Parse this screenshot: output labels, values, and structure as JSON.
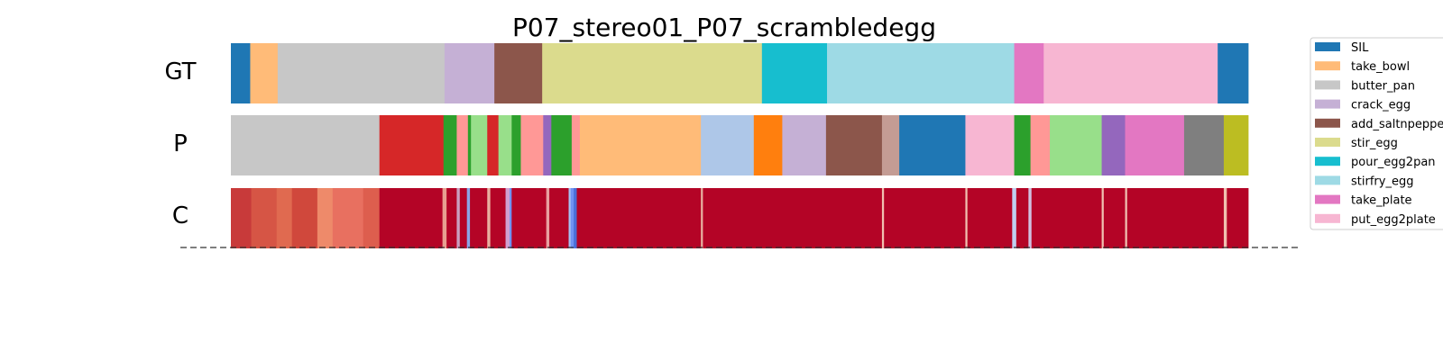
{
  "chart_data": {
    "type": "segmentation-timeline",
    "title": "P07_stereo01_P07_scrambledegg",
    "row_labels": [
      "GT",
      "P",
      "C"
    ],
    "legend_placement": "top-right",
    "x_range": [
      0,
      1000
    ],
    "legend": [
      {
        "label": "SIL",
        "color": "#1f77b4"
      },
      {
        "label": "take_bowl",
        "color": "#ffbb78"
      },
      {
        "label": "butter_pan",
        "color": "#c7c7c7"
      },
      {
        "label": "crack_egg",
        "color": "#c5b0d5"
      },
      {
        "label": "add_saltnpepper",
        "color": "#8c564b"
      },
      {
        "label": "stir_egg",
        "color": "#dbdb8d"
      },
      {
        "label": "pour_egg2pan",
        "color": "#17becf"
      },
      {
        "label": "stirfry_egg",
        "color": "#9edae5"
      },
      {
        "label": "take_plate",
        "color": "#e377c2"
      },
      {
        "label": "put_egg2plate",
        "color": "#f7b6d2"
      }
    ],
    "extra_colors": {
      "red": "#d62728",
      "green": "#2ca02c",
      "lightgreen": "#98df8a",
      "salmon": "#ff9896",
      "purple": "#9467bd",
      "lightblue": "#aec7e8",
      "orange": "#ff7f0e",
      "rosybrown": "#c49c94",
      "gray": "#7f7f7f",
      "olive": "#bcbd22"
    },
    "series": [
      {
        "segments": [
          {
            "start": 0,
            "end": 19,
            "color": "#1f77b4"
          },
          {
            "start": 19,
            "end": 46,
            "color": "#ffbb78"
          },
          {
            "start": 46,
            "end": 210,
            "color": "#c7c7c7"
          },
          {
            "start": 210,
            "end": 259,
            "color": "#c5b0d5"
          },
          {
            "start": 259,
            "end": 306,
            "color": "#8c564b"
          },
          {
            "start": 306,
            "end": 522,
            "color": "#dbdb8d"
          },
          {
            "start": 522,
            "end": 586,
            "color": "#17becf"
          },
          {
            "start": 586,
            "end": 770,
            "color": "#9edae5"
          },
          {
            "start": 770,
            "end": 799,
            "color": "#e377c2"
          },
          {
            "start": 799,
            "end": 970,
            "color": "#f7b6d2"
          },
          {
            "start": 970,
            "end": 1000,
            "color": "#1f77b4"
          }
        ]
      },
      {
        "segments": [
          {
            "start": 0,
            "end": 146,
            "color": "#c7c7c7"
          },
          {
            "start": 146,
            "end": 209,
            "color": "#d62728"
          },
          {
            "start": 209,
            "end": 222,
            "color": "#2ca02c"
          },
          {
            "start": 222,
            "end": 233,
            "color": "#ff9896"
          },
          {
            "start": 233,
            "end": 236,
            "color": "#2ca02c"
          },
          {
            "start": 236,
            "end": 252,
            "color": "#98df8a"
          },
          {
            "start": 252,
            "end": 263,
            "color": "#d62728"
          },
          {
            "start": 263,
            "end": 276,
            "color": "#98df8a"
          },
          {
            "start": 276,
            "end": 285,
            "color": "#2ca02c"
          },
          {
            "start": 285,
            "end": 307,
            "color": "#ff9896"
          },
          {
            "start": 307,
            "end": 315,
            "color": "#9467bd"
          },
          {
            "start": 315,
            "end": 335,
            "color": "#2ca02c"
          },
          {
            "start": 335,
            "end": 343,
            "color": "#ff9896"
          },
          {
            "start": 343,
            "end": 462,
            "color": "#ffbb78"
          },
          {
            "start": 462,
            "end": 514,
            "color": "#aec7e8"
          },
          {
            "start": 514,
            "end": 542,
            "color": "#ff7f0e"
          },
          {
            "start": 542,
            "end": 585,
            "color": "#c5b0d5"
          },
          {
            "start": 585,
            "end": 640,
            "color": "#8c564b"
          },
          {
            "start": 640,
            "end": 657,
            "color": "#c49c94"
          },
          {
            "start": 657,
            "end": 722,
            "color": "#1f77b4"
          },
          {
            "start": 722,
            "end": 770,
            "color": "#f7b6d2"
          },
          {
            "start": 770,
            "end": 786,
            "color": "#2ca02c"
          },
          {
            "start": 786,
            "end": 805,
            "color": "#ff9896"
          },
          {
            "start": 805,
            "end": 856,
            "color": "#98df8a"
          },
          {
            "start": 856,
            "end": 879,
            "color": "#9467bd"
          },
          {
            "start": 879,
            "end": 937,
            "color": "#e377c2"
          },
          {
            "start": 937,
            "end": 976,
            "color": "#7f7f7f"
          },
          {
            "start": 976,
            "end": 1000,
            "color": "#bcbd22"
          }
        ]
      },
      {
        "segments": [
          {
            "start": 0,
            "end": 20,
            "color": "#c83a3a"
          },
          {
            "start": 20,
            "end": 45,
            "color": "#d65545"
          },
          {
            "start": 45,
            "end": 60,
            "color": "#e06a50"
          },
          {
            "start": 60,
            "end": 85,
            "color": "#d0483c"
          },
          {
            "start": 85,
            "end": 100,
            "color": "#ee8a6a"
          },
          {
            "start": 100,
            "end": 130,
            "color": "#e87060"
          },
          {
            "start": 130,
            "end": 146,
            "color": "#dd5e4e"
          },
          {
            "start": 146,
            "end": 208,
            "color": "#b40426"
          },
          {
            "start": 208,
            "end": 212,
            "color": "#e8a090"
          },
          {
            "start": 212,
            "end": 222,
            "color": "#b40426"
          },
          {
            "start": 222,
            "end": 225,
            "color": "#c9a0c0"
          },
          {
            "start": 225,
            "end": 232,
            "color": "#b40426"
          },
          {
            "start": 232,
            "end": 235,
            "color": "#8aa6e6"
          },
          {
            "start": 235,
            "end": 252,
            "color": "#b40426"
          },
          {
            "start": 252,
            "end": 255,
            "color": "#e8b0a0"
          },
          {
            "start": 255,
            "end": 270,
            "color": "#b40426"
          },
          {
            "start": 270,
            "end": 274,
            "color": "#d0a0d0"
          },
          {
            "start": 274,
            "end": 276,
            "color": "#6f92f3"
          },
          {
            "start": 276,
            "end": 310,
            "color": "#b40426"
          },
          {
            "start": 310,
            "end": 313,
            "color": "#e8a0a0"
          },
          {
            "start": 313,
            "end": 332,
            "color": "#b40426"
          },
          {
            "start": 332,
            "end": 334,
            "color": "#a6c0f0"
          },
          {
            "start": 334,
            "end": 337,
            "color": "#6f92f3"
          },
          {
            "start": 337,
            "end": 340,
            "color": "#4a6fd8"
          },
          {
            "start": 340,
            "end": 462,
            "color": "#b40426"
          },
          {
            "start": 462,
            "end": 464,
            "color": "#e8b0a0"
          },
          {
            "start": 464,
            "end": 640,
            "color": "#b40426"
          },
          {
            "start": 640,
            "end": 642,
            "color": "#f0c0b0"
          },
          {
            "start": 642,
            "end": 722,
            "color": "#b40426"
          },
          {
            "start": 722,
            "end": 724,
            "color": "#f0c0b0"
          },
          {
            "start": 724,
            "end": 768,
            "color": "#b40426"
          },
          {
            "start": 768,
            "end": 772,
            "color": "#c0d0f0"
          },
          {
            "start": 772,
            "end": 784,
            "color": "#b40426"
          },
          {
            "start": 784,
            "end": 787,
            "color": "#d0c0e0"
          },
          {
            "start": 787,
            "end": 856,
            "color": "#b40426"
          },
          {
            "start": 856,
            "end": 858,
            "color": "#f0c0b0"
          },
          {
            "start": 858,
            "end": 879,
            "color": "#b40426"
          },
          {
            "start": 879,
            "end": 881,
            "color": "#f0c0b0"
          },
          {
            "start": 881,
            "end": 976,
            "color": "#b40426"
          },
          {
            "start": 976,
            "end": 979,
            "color": "#f0c0b0"
          },
          {
            "start": 979,
            "end": 1000,
            "color": "#b40426"
          }
        ]
      }
    ]
  }
}
